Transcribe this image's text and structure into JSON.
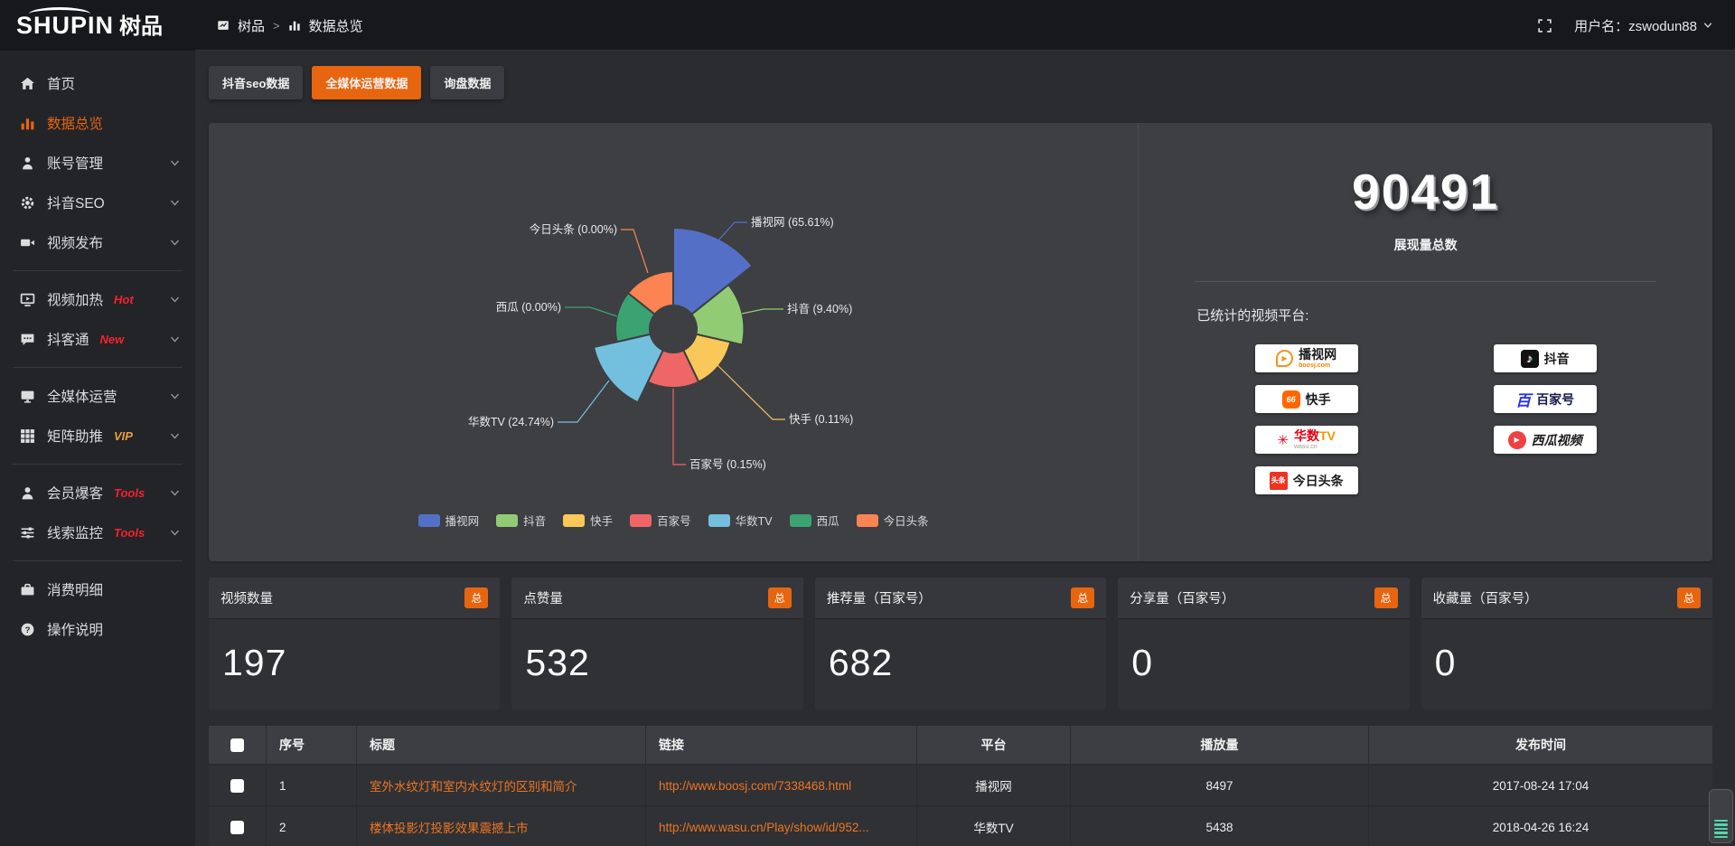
{
  "header": {
    "logo_text": "SHUPIN",
    "logo_cn": "树品",
    "breadcrumb": {
      "root": "树品",
      "sep": ">",
      "current": "数据总览"
    },
    "username": "用户名：zswodun88"
  },
  "sidebar": {
    "items": [
      {
        "label": "首页",
        "icon": "home"
      },
      {
        "label": "数据总览",
        "icon": "bar-chart",
        "active": true
      },
      {
        "label": "账号管理",
        "icon": "user",
        "chevron": true
      },
      {
        "label": "抖音SEO",
        "icon": "gear",
        "chevron": true
      },
      {
        "label": "视频发布",
        "icon": "video",
        "chevron": true,
        "divider_after": true
      },
      {
        "label": "视频加热",
        "icon": "screen-play",
        "badge": "Hot",
        "badge_color": "#f5222d",
        "chevron": true
      },
      {
        "label": "抖客通",
        "icon": "chat",
        "badge": "New",
        "badge_color": "#f5222d",
        "chevron": true,
        "divider_after": true
      },
      {
        "label": "全媒体运营",
        "icon": "monitor",
        "chevron": true
      },
      {
        "label": "矩阵助推",
        "icon": "grid",
        "badge": "VIP",
        "badge_color": "#e6a23c",
        "chevron": true,
        "divider_after": true
      },
      {
        "label": "会员爆客",
        "icon": "person",
        "badge": "Tools",
        "badge_color": "#f5222d",
        "chevron": true
      },
      {
        "label": "线索监控",
        "icon": "sliders",
        "badge": "Tools",
        "badge_color": "#f5222d",
        "chevron": true,
        "divider_after": true
      },
      {
        "label": "消费明细",
        "icon": "wallet"
      },
      {
        "label": "操作说明",
        "icon": "question"
      }
    ]
  },
  "tabs": [
    {
      "label": "抖音seo数据",
      "active": false
    },
    {
      "label": "全媒体运营数据",
      "active": true
    },
    {
      "label": "询盘数据",
      "active": false
    }
  ],
  "chart_data": {
    "type": "pie",
    "variant": "nightingale_rose",
    "title": "",
    "categories": [
      "播视网",
      "抖音",
      "快手",
      "百家号",
      "华数TV",
      "西瓜",
      "今日头条"
    ],
    "values_percent": [
      65.61,
      9.4,
      0.11,
      0.15,
      24.74,
      0,
      0
    ],
    "colors": [
      "#5470c6",
      "#91cc75",
      "#fac858",
      "#ee6666",
      "#73c0de",
      "#3ba272",
      "#fc8452"
    ],
    "legend": [
      "播视网",
      "抖音",
      "快手",
      "百家号",
      "华数TV",
      "西瓜",
      "今日头条"
    ],
    "legend_position": "bottom",
    "label_format": "{name} ({value}%)"
  },
  "summary": {
    "total_value": "90491",
    "total_label": "展现量总数",
    "platforms_title": "已统计的视频平台:",
    "platforms": [
      {
        "name": "播视网",
        "sub": "boosj.com",
        "logo": "boosj"
      },
      {
        "name": "抖音",
        "logo": "douyin"
      },
      {
        "name": "快手",
        "logo": "kuaishou"
      },
      {
        "name": "百家号",
        "logo": "baijiahao"
      },
      {
        "name": "华数TV",
        "sub": "wasu.cn",
        "logo": "wasu"
      },
      {
        "name": "西瓜视频",
        "logo": "xigua"
      },
      {
        "name": "今日头条",
        "logo": "toutiao"
      }
    ]
  },
  "stats": {
    "badge": "总",
    "cards": [
      {
        "label": "视频数量",
        "value": "197"
      },
      {
        "label": "点赞量",
        "value": "532"
      },
      {
        "label": "推荐量（百家号）",
        "value": "682"
      },
      {
        "label": "分享量（百家号）",
        "value": "0"
      },
      {
        "label": "收藏量（百家号）",
        "value": "0"
      }
    ]
  },
  "table": {
    "headers": [
      "序号",
      "标题",
      "链接",
      "平台",
      "播放量",
      "发布时间"
    ],
    "rows": [
      {
        "index": "1",
        "title": "室外水纹灯和室内水纹灯的区别和简介",
        "link": "http://www.boosj.com/7338468.html",
        "platform": "播视网",
        "plays": "8497",
        "time": "2017-08-24 17:04"
      },
      {
        "index": "2",
        "title": "楼体投影灯投影效果震撼上市",
        "link": "http://www.wasu.cn/Play/show/id/952...",
        "platform": "华数TV",
        "plays": "5438",
        "time": "2018-04-26 16:24"
      }
    ]
  }
}
